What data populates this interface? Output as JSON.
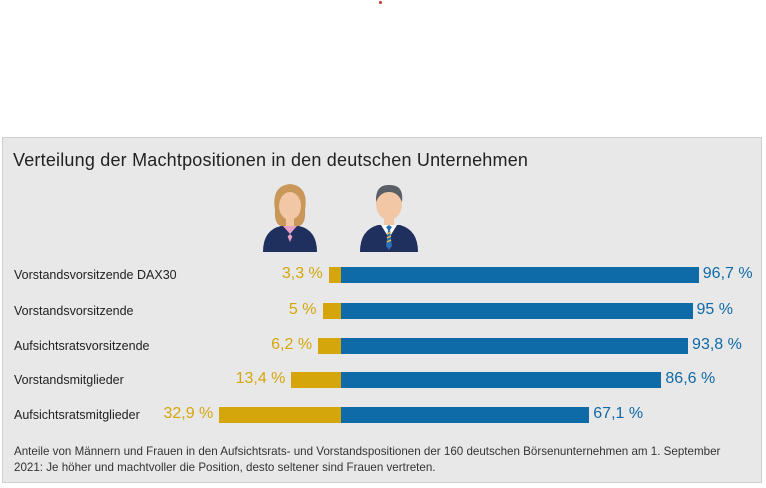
{
  "colors": {
    "women": "#d4a60b",
    "men": "#0f6aa8",
    "background": "#e8e8e8"
  },
  "icons": {
    "woman": "woman-avatar-icon",
    "man": "man-avatar-icon"
  },
  "chart_data": {
    "type": "bar",
    "orientation": "horizontal-stacked",
    "title": "Verteilung der Machtpositionen in den deutschen Unternehmen",
    "categories": [
      "Vorstandsvorsitzende DAX30",
      "Vorstandsvorsitzende",
      "Aufsichtsratsvorsitzende",
      "Vorstandsmitglieder",
      "Aufsichtsratsmitglieder"
    ],
    "series": [
      {
        "values": [
          3.3,
          5,
          6.2,
          13.4,
          32.9
        ],
        "labels": [
          "3,3 %",
          "5 %",
          "6,2 %",
          "13,4 %",
          "32,9 %"
        ]
      },
      {
        "values": [
          96.7,
          95,
          93.8,
          86.6,
          67.1
        ],
        "labels": [
          "96,7 %",
          "95 %",
          "93,8 %",
          "86,6 %",
          "67,1 %"
        ]
      }
    ],
    "unit": "%",
    "xlim": [
      0,
      100
    ],
    "grid": false,
    "footnote": "Anteile von Männern und Frauen in den Aufsichtsrats- und Vorstandspositionen der 160 deutschen Börsenunternehmen am 1. September 2021: Je höher und machtvoller die Position, desto seltener sind Frauen vertreten."
  }
}
